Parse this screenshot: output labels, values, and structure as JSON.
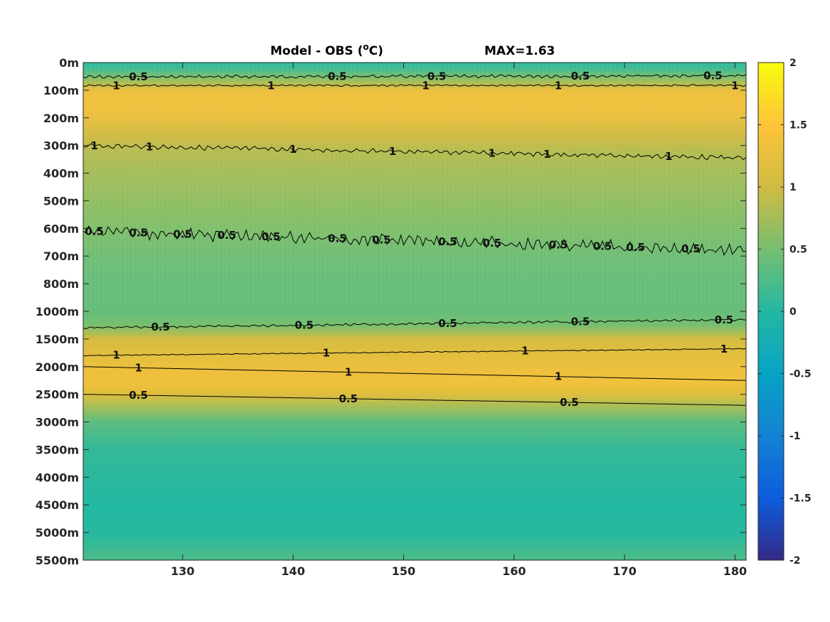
{
  "chart_data": {
    "type": "heatmap",
    "title": "Model - OBS (",
    "title_sup": "o",
    "title_unit": "C)",
    "max_label": "MAX=1.63",
    "x_ticks": [
      130,
      140,
      150,
      160,
      170,
      180
    ],
    "xlim": [
      121,
      181
    ],
    "y_ticks": [
      "0m",
      "100m",
      "200m",
      "300m",
      "400m",
      "500m",
      "600m",
      "700m",
      "800m",
      "1000m",
      "1500m",
      "2000m",
      "2500m",
      "3000m",
      "3500m",
      "4000m",
      "4500m",
      "5000m",
      "5500m"
    ],
    "colorbar": {
      "ticks": [
        "2",
        "1.5",
        "1",
        "0.5",
        "0",
        "-0.5",
        "-1",
        "-1.5",
        "-2"
      ],
      "range": [
        -2,
        2
      ],
      "colormap": "parula"
    },
    "depth_profile": [
      {
        "level": 0.0,
        "value": 0.05
      },
      {
        "level": 0.25,
        "value": 0.2
      },
      {
        "level": 0.5,
        "value": 0.5
      },
      {
        "level": 0.8,
        "value": 0.9
      },
      {
        "level": 1.0,
        "value": 1.3
      },
      {
        "level": 1.5,
        "value": 1.35
      },
      {
        "level": 2.0,
        "value": 1.25
      },
      {
        "level": 2.6,
        "value": 1.0
      },
      {
        "level": 3.2,
        "value": 0.85
      },
      {
        "level": 4.0,
        "value": 0.75
      },
      {
        "level": 5.0,
        "value": 0.65
      },
      {
        "level": 6.0,
        "value": 0.55
      },
      {
        "level": 7.0,
        "value": 0.45
      },
      {
        "level": 8.0,
        "value": 0.4
      },
      {
        "level": 9.0,
        "value": 0.4
      },
      {
        "level": 9.5,
        "value": 0.5
      },
      {
        "level": 10.0,
        "value": 1.05
      },
      {
        "level": 11.0,
        "value": 1.3
      },
      {
        "level": 11.6,
        "value": 1.35
      },
      {
        "level": 12.0,
        "value": 1.15
      },
      {
        "level": 12.6,
        "value": 0.65
      },
      {
        "level": 13.0,
        "value": 0.35
      },
      {
        "level": 14.0,
        "value": 0.1
      },
      {
        "level": 16.0,
        "value": 0.0
      },
      {
        "level": 17.0,
        "value": 0.02
      },
      {
        "level": 18.0,
        "value": 0.25
      }
    ],
    "contours": [
      {
        "value": "0.5",
        "level": [
          0.52,
          0.48
        ],
        "wiggle": 0.07,
        "labels": [
          126,
          144,
          153,
          166,
          178
        ]
      },
      {
        "value": "1",
        "level": [
          0.83,
          0.83
        ],
        "wiggle": 0.04,
        "labels": [
          124,
          138,
          152,
          164,
          180
        ]
      },
      {
        "value": "1",
        "level": [
          3.0,
          3.45
        ],
        "wiggle": 0.1,
        "labels": [
          122,
          127,
          140,
          149,
          158,
          163,
          174
        ]
      },
      {
        "value": "0.5",
        "level": [
          6.1,
          6.8
        ],
        "wiggle": 0.25,
        "labels": [
          122,
          126,
          130,
          134,
          138,
          144,
          148,
          154,
          158,
          164,
          168,
          171,
          176
        ]
      },
      {
        "value": "0.5",
        "level": [
          9.6,
          9.3
        ],
        "wiggle": 0.05,
        "labels": [
          128,
          141,
          154,
          166,
          179
        ]
      },
      {
        "value": "1",
        "level": [
          10.6,
          10.35
        ],
        "wiggle": 0.02,
        "labels": [
          124,
          143,
          161,
          179
        ]
      },
      {
        "value": "1",
        "level": [
          11.0,
          11.5
        ],
        "wiggle": 0.0,
        "labels": [
          126,
          145,
          164
        ]
      },
      {
        "value": "0.5",
        "level": [
          12.0,
          12.4
        ],
        "wiggle": 0.0,
        "labels": [
          126,
          145,
          165
        ]
      }
    ]
  }
}
